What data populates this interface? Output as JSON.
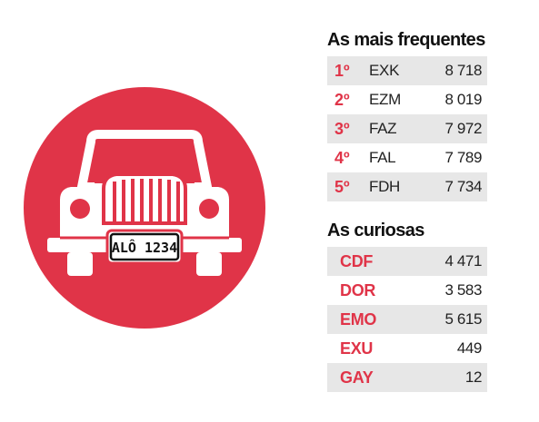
{
  "colors": {
    "accent": "#e03448",
    "row_shade": "#e7e7e7",
    "text": "#222222",
    "plate_text": "#111111"
  },
  "illustration": {
    "icon": "car-front-icon",
    "plate_text": "ALÔ 1234"
  },
  "frequentes": {
    "title": "As mais frequentes",
    "rows": [
      {
        "rank": "1º",
        "code": "EXK",
        "value": "8 718"
      },
      {
        "rank": "2º",
        "code": "EZM",
        "value": "8 019"
      },
      {
        "rank": "3º",
        "code": "FAZ",
        "value": "7 972"
      },
      {
        "rank": "4º",
        "code": "FAL",
        "value": "7 789"
      },
      {
        "rank": "5º",
        "code": "FDH",
        "value": "7 734"
      }
    ]
  },
  "curiosas": {
    "title": "As curiosas",
    "rows": [
      {
        "word": "CDF",
        "value": "4 471"
      },
      {
        "word": "DOR",
        "value": "3 583"
      },
      {
        "word": "EMO",
        "value": "5 615"
      },
      {
        "word": "EXU",
        "value": "449"
      },
      {
        "word": "GAY",
        "value": "12"
      }
    ]
  }
}
